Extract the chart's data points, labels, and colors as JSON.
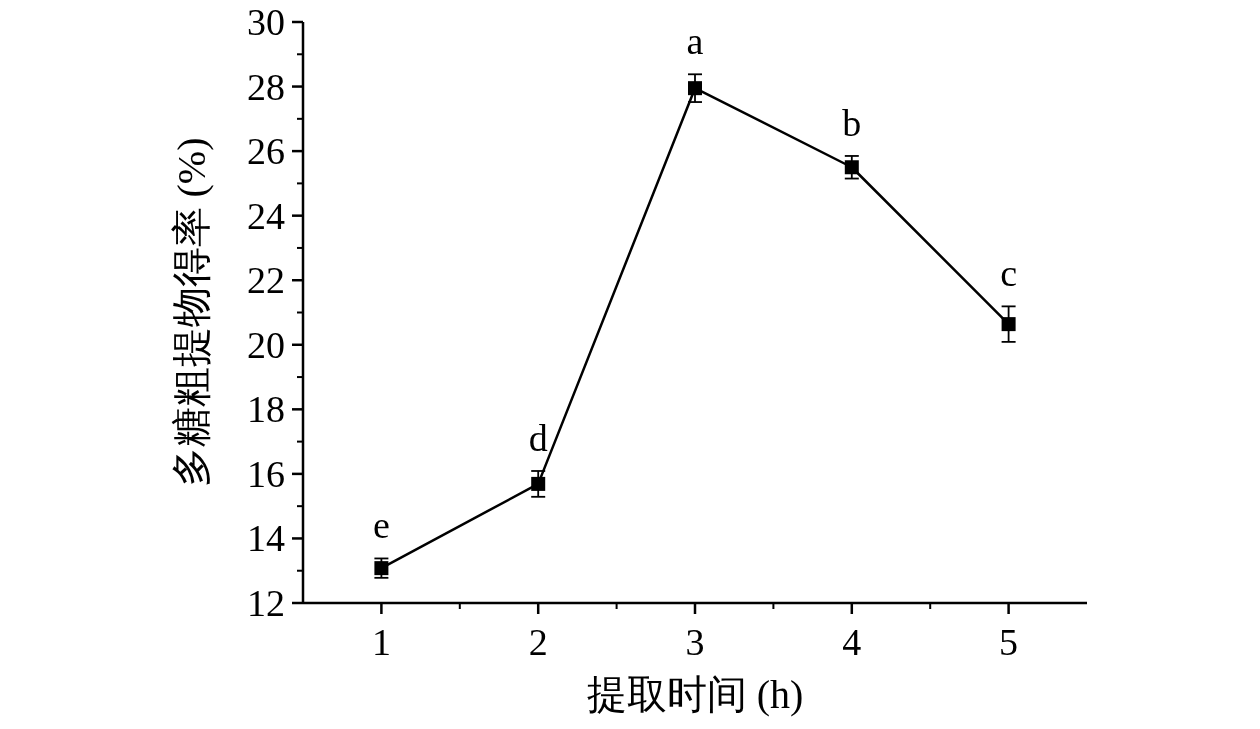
{
  "chart_data": {
    "type": "line",
    "xlabel": "提取时间 (h)",
    "ylabel": "多糖粗提物得率 (%)",
    "x": [
      1,
      2,
      3,
      4,
      5
    ],
    "series": [
      {
        "color": "#000000",
        "values": [
          13.08,
          15.69,
          27.95,
          25.5,
          20.64
        ],
        "errors": [
          0.3,
          0.4,
          0.43,
          0.35,
          0.55
        ]
      }
    ],
    "marker": "square",
    "line_style": "solid",
    "xlim": [
      0.5,
      5.5
    ],
    "xticks": [
      1,
      2,
      3,
      4,
      5
    ],
    "ylim": [
      12,
      30
    ],
    "yticks": [
      12,
      14,
      16,
      18,
      20,
      22,
      24,
      26,
      28,
      30
    ],
    "annotations": [
      {
        "text": "e",
        "x": 1,
        "y": 13.08
      },
      {
        "text": "d",
        "x": 2,
        "y": 15.69
      },
      {
        "text": "a",
        "x": 3,
        "y": 27.95
      },
      {
        "text": "b",
        "x": 4,
        "y": 25.5
      },
      {
        "text": "c",
        "x": 5,
        "y": 20.64
      }
    ]
  }
}
